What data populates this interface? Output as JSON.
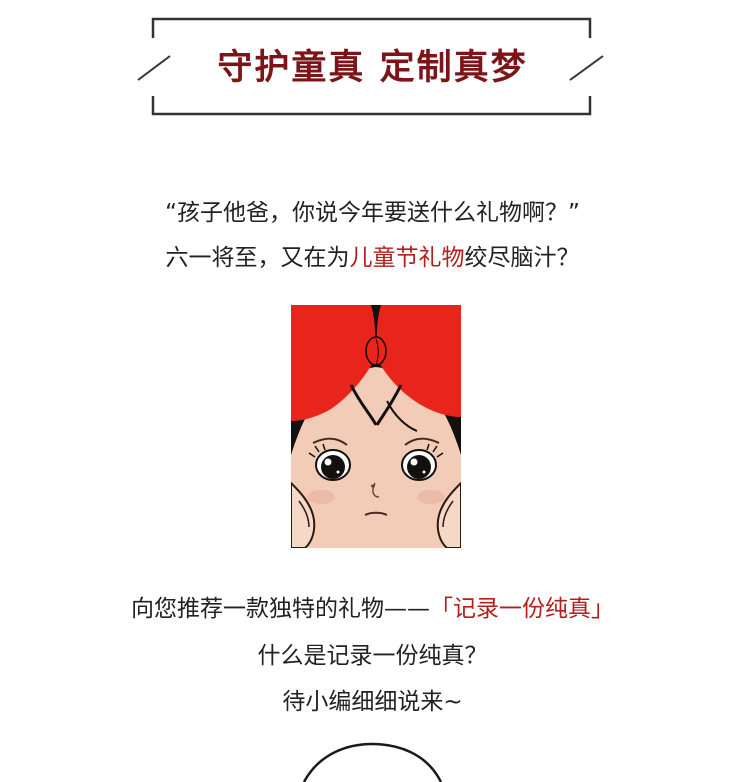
{
  "header": {
    "title": "守护童真 定制真梦",
    "title_color": "#7d1518",
    "frame_color": "#333333"
  },
  "intro": {
    "line1": "“孩子他爸，你说今年要送什么礼物啊？”",
    "line2_before": "六一将至，又在为",
    "line2_highlight": "儿童节礼物",
    "line2_after": "绞尽脑汁？",
    "highlight_color": "#b3201c"
  },
  "illustration": {
    "subject": "girl-with-red-bow",
    "colors": {
      "bow": "#e8241b",
      "hair": "#141010",
      "skin": "#f2ccb6"
    }
  },
  "recommend": {
    "line1_before": "向您推荐一款独特的礼物——",
    "line1_highlight": "「记录一份纯真」",
    "line2": "什么是记录一份纯真？",
    "line3": "待小编细细说来~"
  }
}
